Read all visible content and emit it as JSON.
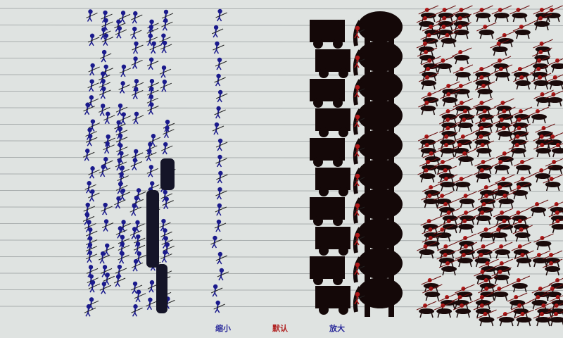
{
  "controls": {
    "zoom_out": "缩小",
    "default": "默认",
    "zoom_in": "放大"
  },
  "colors": {
    "background": "#dfe3e1",
    "lines": "#a9aeae",
    "blue_army": "#1a1a8c",
    "red_army": "#b01818",
    "silhouette": "#140808",
    "zoom_out_label": "#2a2a9a",
    "default_label": "#b02020",
    "zoom_in_label": "#2a2a9a"
  }
}
